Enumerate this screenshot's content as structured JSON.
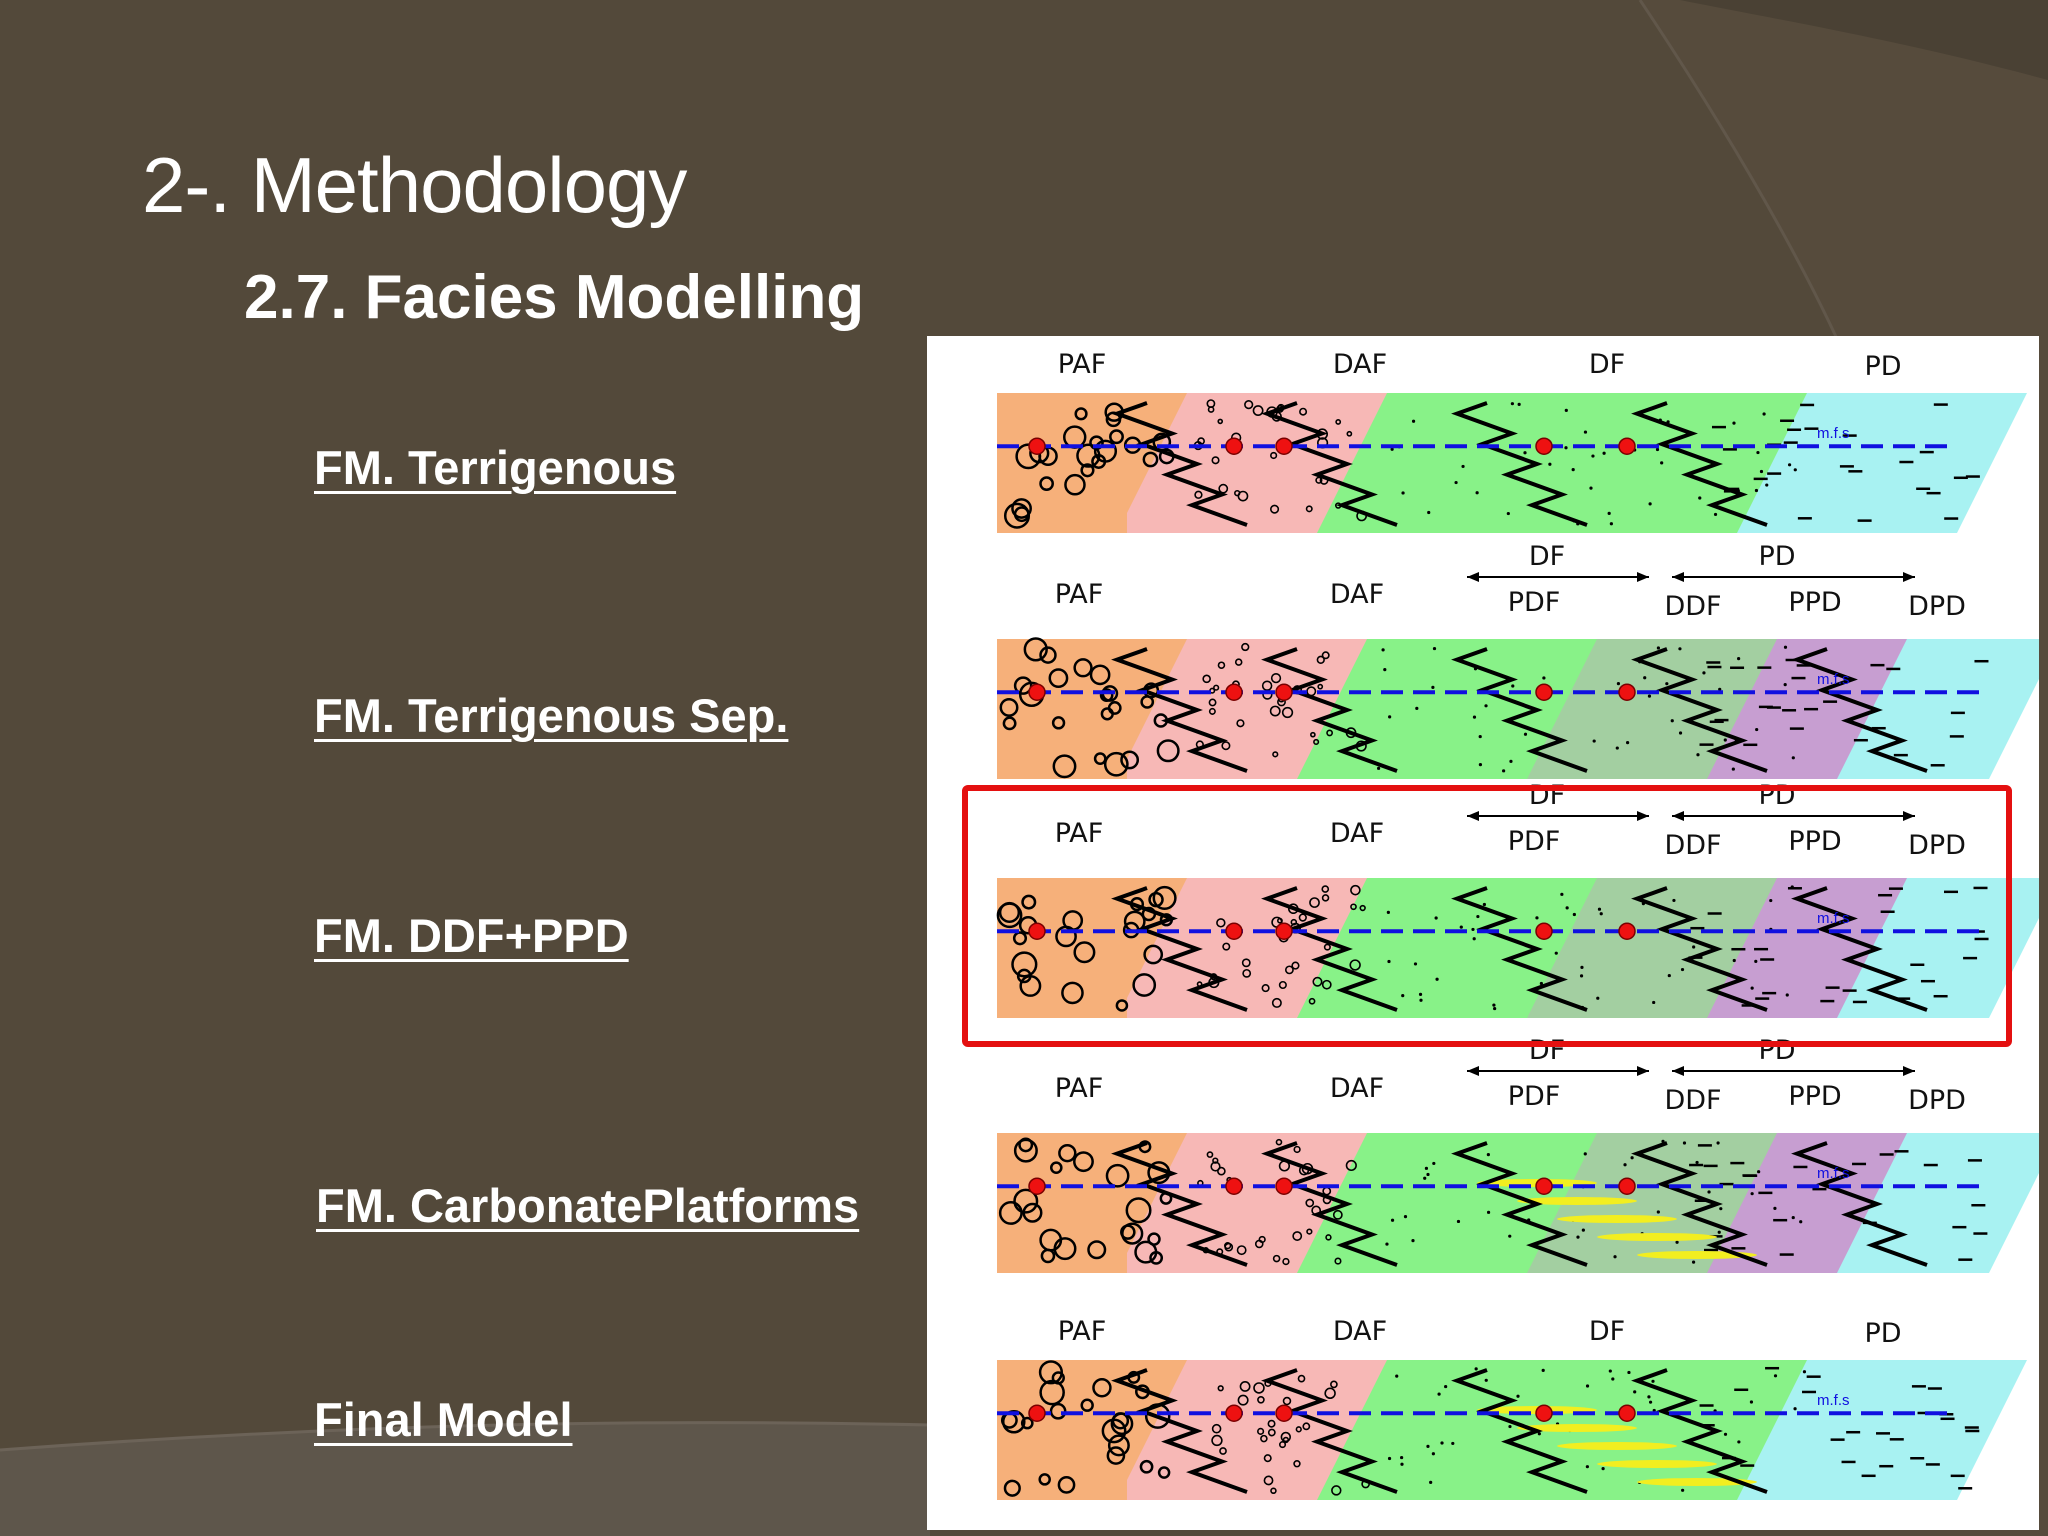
{
  "slide": {
    "title": "2-. Methodology",
    "subtitle": "2.7. Facies Modelling"
  },
  "labels": [
    {
      "text": "FM. Terrigenous"
    },
    {
      "text": "FM. Terrigenous Sep."
    },
    {
      "text": "FM. DDF+PPD"
    },
    {
      "text": "FM. CarbonatePlatforms"
    },
    {
      "text": "Final Model"
    }
  ],
  "diagrams": [
    {
      "facies": [
        "PAF",
        "DAF",
        "DF",
        "PD"
      ],
      "mfs": "m.f.s"
    },
    {
      "facies": [
        "PAF",
        "DAF",
        "DF",
        "PD",
        "PDF",
        "DDF",
        "PPD",
        "DPD"
      ],
      "mfs": "m.f.s"
    },
    {
      "facies": [
        "PAF",
        "DAF",
        "DF",
        "PD",
        "PDF",
        "DDF",
        "PPD",
        "DPD"
      ],
      "mfs": "m.f.s"
    },
    {
      "facies": [
        "PAF",
        "DAF",
        "DF",
        "PD",
        "PDF",
        "DDF",
        "PPD",
        "DPD"
      ],
      "mfs": "m.f.s"
    },
    {
      "facies": [
        "PAF",
        "DAF",
        "DF",
        "PD"
      ],
      "mfs": "m.f.s"
    }
  ],
  "highlighted_diagram": 2,
  "colors": {
    "background": "#564b3c",
    "paf": "#f6b07a",
    "daf": "#f7b8b6",
    "df": "#88f288",
    "ddf": "#a3cfa1",
    "pd": "#a8f2f2",
    "ppd": "#c79ed1",
    "mfs_line": "#1010e0",
    "dot": "#ee1111",
    "highlight": "#e41010",
    "carbonate": "#f2ee20"
  }
}
